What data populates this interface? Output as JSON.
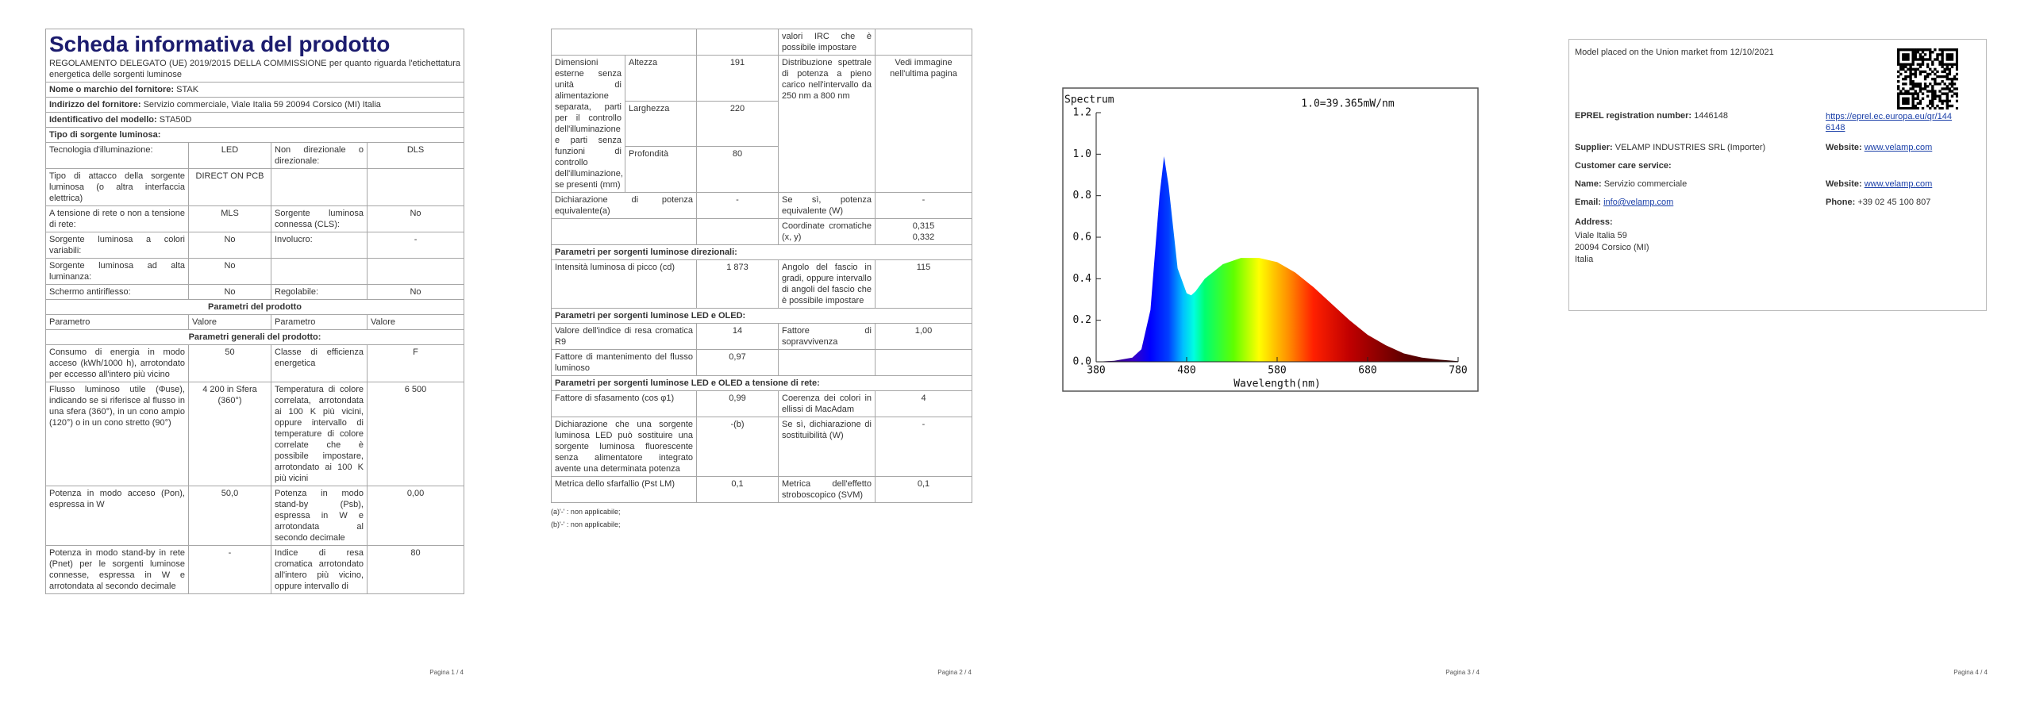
{
  "page_1": {
    "title": "Scheda informativa del prodotto",
    "regulation": "REGOLAMENTO DELEGATO (UE) 2019/2015 DELLA COMMISSIONE per quanto riguarda l'etichettatura energetica delle sorgenti luminose",
    "fields": [
      {
        "label": "Nome o marchio del fornitore:",
        "value": "STAK"
      },
      {
        "label": "Indirizzo del fornitore:",
        "value": "Servizio commerciale, Viale Italia 59 20094 Corsico (MI) Italia"
      },
      {
        "label": "Identificativo del modello:",
        "value": "STA50D"
      }
    ],
    "light_source_type": {
      "heading": "Tipo di sorgente luminosa:",
      "rows": [
        [
          "Tecnologia d'illuminazione:",
          "LED",
          "Non direzionale o direzionale:",
          "DLS"
        ],
        [
          "Tipo di attacco della sorgente luminosa (o altra interfaccia elettrica)",
          "DIRECT ON PCB",
          null,
          null
        ],
        [
          "A tensione di rete o non a tensione di rete:",
          "MLS",
          "Sorgente luminosa connessa (CLS):",
          "No"
        ],
        [
          "Sorgente luminosa a colori variabili:",
          "No",
          "Involucro:",
          "-"
        ],
        [
          "Sorgente luminosa ad alta luminanza:",
          "No",
          null,
          null
        ],
        [
          "Schermo antiriflesso:",
          "No",
          "Regolabile:",
          "No"
        ]
      ]
    },
    "product_parameters": {
      "heading": "Parametri del prodotto",
      "columns": [
        "Parametro",
        "Valore",
        "Parametro",
        "Valore"
      ],
      "general_heading": "Parametri generali del prodotto:",
      "rows": [
        [
          "Consumo di energia in modo acceso (kWh/1000 h), arrotondato per eccesso all'intero più vicino",
          "50",
          "Classe di efficienza energetica",
          "F"
        ],
        [
          "Flusso luminoso utile (Φuse), indicando se si riferisce al flusso in una sfera (360°), in un cono ampio (120°) o in un cono stretto (90°)",
          "4 200 in Sfera (360°)",
          "Temperatura di colore correlata, arrotondata ai 100 K più vicini, oppure intervallo di temperature di colore correlate che è possibile impostare, arrotondato ai 100 K più vicini",
          "6 500"
        ],
        [
          "Potenza in modo acceso (Pon), espressa in W",
          "50,0",
          "Potenza in modo stand-by (Psb), espressa in W e arrotondata al secondo decimale",
          "0,00"
        ],
        [
          "Potenza in modo stand-by in rete (Pnet) per le sorgenti luminose connesse, espressa in W e arrotondata al secondo decimale",
          "-",
          "Indice di resa cromatica arrotondato all'intero più vicino, oppure intervallo di",
          "80"
        ]
      ]
    }
  },
  "page_2": {
    "continued_rows": [
      [
        null,
        null,
        "valori IRC che è possibile impostare",
        null
      ]
    ],
    "dimensions": {
      "label": "Dimensioni esterne senza unità di alimentazione separata, parti per il controllo dell'illuminazione e parti senza funzioni di controllo dell'illuminazione, se presenti (mm)",
      "parts": [
        {
          "name": "Altezza",
          "value": "191"
        },
        {
          "name": "Larghezza",
          "value": "220"
        },
        {
          "name": "Profondità",
          "value": "80"
        }
      ],
      "parameter": "Distribuzione spettrale di potenza a pieno carico nell'intervallo da 250 nm a 800 nm",
      "value": "Vedi immagine nell'ultima pagina"
    },
    "rows": [
      [
        "Dichiarazione di potenza equivalente(a)",
        "-",
        "Se sì, potenza equivalente (W)",
        "-"
      ],
      [
        null,
        null,
        "Coordinate cromatiche (x, y)",
        [
          "0,315",
          "0,332"
        ]
      ]
    ],
    "sections": [
      {
        "heading": "Parametri per sorgenti luminose direzionali:",
        "rows": [
          [
            "Intensità luminosa di picco (cd)",
            "1 873",
            "Angolo del fascio in gradi, oppure intervallo di angoli del fascio che è possibile impostare",
            "115"
          ]
        ]
      },
      {
        "heading": "Parametri per sorgenti luminose LED e OLED:",
        "rows": [
          [
            "Valore dell'indice di resa cromatica R9",
            "14",
            "Fattore di sopravvivenza",
            "1,00"
          ],
          [
            "Fattore di mantenimento del flusso luminoso",
            "0,97",
            null,
            null
          ]
        ]
      },
      {
        "heading": "Parametri per sorgenti luminose LED e OLED a tensione di rete:",
        "rows": [
          [
            "Fattore di sfasamento (cos φ1)",
            "0,99",
            "Coerenza dei colori in ellissi di MacAdam",
            "4"
          ],
          [
            "Dichiarazione che una sorgente luminosa LED può sostituire una sorgente luminosa fluorescente senza alimentatore integrato avente una determinata potenza",
            "-(b)",
            "Se sì, dichiarazione di sostituibilità (W)",
            "-"
          ],
          [
            "Metrica dello sfarfallio (Pst LM)",
            "0,1",
            "Metrica dell'effetto stroboscopico (SVM)",
            "0,1"
          ]
        ]
      }
    ],
    "notes": [
      "(a)'-' : non applicabile;",
      "(b)'-' : non applicabile;"
    ]
  },
  "chart_data": {
    "type": "area",
    "title": "Spectrum",
    "annotation": "1.0=39.365mW/nm",
    "x_label": "Wavelength(nm)",
    "x": [
      380,
      400,
      420,
      430,
      440,
      450,
      455,
      460,
      470,
      480,
      485,
      490,
      500,
      520,
      540,
      560,
      580,
      600,
      620,
      640,
      660,
      680,
      700,
      720,
      740,
      760,
      780
    ],
    "values": [
      0,
      0.005,
      0.02,
      0.06,
      0.25,
      0.8,
      0.99,
      0.85,
      0.45,
      0.33,
      0.32,
      0.34,
      0.4,
      0.47,
      0.5,
      0.5,
      0.48,
      0.43,
      0.36,
      0.28,
      0.2,
      0.13,
      0.08,
      0.04,
      0.02,
      0.01,
      0.003
    ],
    "xlim": [
      380,
      780
    ],
    "ylim": [
      0,
      1.2
    ],
    "xticks": [
      380,
      480,
      580,
      680,
      780
    ],
    "yticks": [
      {
        "value": 0,
        "label": "0.0"
      },
      0.2,
      0.4,
      0.6,
      0.8,
      {
        "value": 1,
        "label": "1.0"
      },
      1.2
    ]
  },
  "page_4": {
    "market": "Model placed on the Union market from 12/10/2021",
    "eprel": {
      "label": "EPREL registration number:",
      "value": "1446148",
      "link": "https://eprel.ec.europa.eu/qr/1446148"
    },
    "supplier": {
      "label": "Supplier:",
      "value": "VELAMP INDUSTRIES SRL (Importer)"
    },
    "website": {
      "label": "Website:",
      "value": "www.velamp.com"
    },
    "customer_care": "Customer care service:",
    "name": {
      "label": "Name:",
      "value": "Servizio commerciale"
    },
    "care_website": {
      "label": "Website:",
      "value": "www.velamp.com"
    },
    "email": {
      "label": "Email:",
      "value": "info@velamp.com"
    },
    "phone": {
      "label": "Phone:",
      "value": "+39 02 45 100 807"
    },
    "address": {
      "label": "Address:",
      "lines": [
        "Viale Italia 59",
        "20094 Corsico (MI)",
        "Italia"
      ]
    }
  },
  "footers": [
    "Pagina 1 / 4",
    "Pagina 2 / 4",
    "Pagina 3 / 4",
    "Pagina 4 / 4"
  ]
}
